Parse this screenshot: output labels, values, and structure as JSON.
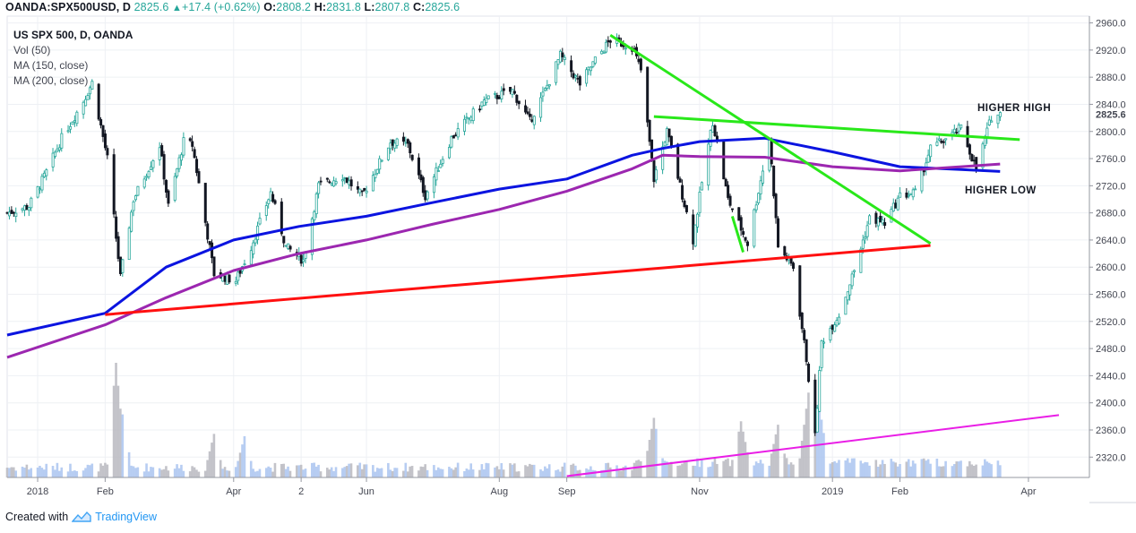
{
  "header": {
    "symbol": "OANDA:SPX500USD, D",
    "last": "2825.6",
    "change": "+17.4 (+0.62%)",
    "o_label": "O:",
    "o_value": "2808.2",
    "h_label": "H:",
    "h_value": "2831.8",
    "l_label": "L:",
    "l_value": "2807.8",
    "c_label": "C:",
    "c_value": "2825.6",
    "up_icon": "triangle-up-icon"
  },
  "legend": {
    "title": "US SPX 500, D, OANDA",
    "vol": "Vol (50)",
    "ma150": "MA (150, close)",
    "ma200": "MA (200, close)"
  },
  "annotations": {
    "higher_high": "HIGHER HIGH",
    "higher_low": "HIGHER LOW"
  },
  "footer": {
    "created_with": "Created with",
    "brand": "TradingView",
    "logo_icon": "tradingview-logo-icon"
  },
  "colors": {
    "up_candle": "#26a69a",
    "down_candle": "#131722",
    "ma150": "#0b14e0",
    "ma200": "#9c27b0",
    "support": "#ff1010",
    "trend_green": "#29e81a",
    "trend_magenta": "#e91ee6",
    "volume": "#aac4f0",
    "volume_dark": "#b9b9c0"
  },
  "chart_data": {
    "type": "candlestick",
    "title": "US SPX 500, D, OANDA",
    "ylim": [
      2290,
      2970
    ],
    "y_ticks": [
      2320,
      2360,
      2400,
      2440,
      2480,
      2520,
      2560,
      2600,
      2640,
      2680,
      2720,
      2760,
      2800,
      2840,
      2880,
      2920,
      2960
    ],
    "y_tick_labels": [
      "2320.0",
      "2360.0",
      "2400.0",
      "2440.0",
      "2480.0",
      "2520.0",
      "2560.0",
      "2600.0",
      "2640.0",
      "2680.0",
      "2720.0",
      "2760.0",
      "2800.0",
      "2840.0",
      "2880.0",
      "2920.0",
      "2960.0"
    ],
    "last_price_label": "2825.6",
    "last_price": 2825.6,
    "x_ticks": [
      {
        "label": "2018",
        "date": "2018-01-01"
      },
      {
        "label": "Feb",
        "date": "2018-02-01"
      },
      {
        "label": "Apr",
        "date": "2018-04-01"
      },
      {
        "label": "2",
        "date": "2018-05-02"
      },
      {
        "label": "Jun",
        "date": "2018-06-01"
      },
      {
        "label": "Aug",
        "date": "2018-08-01"
      },
      {
        "label": "Sep",
        "date": "2018-09-01"
      },
      {
        "label": "Nov",
        "date": "2018-11-01"
      },
      {
        "label": "2019",
        "date": "2019-01-01"
      },
      {
        "label": "Feb",
        "date": "2019-02-01"
      },
      {
        "label": "Apr",
        "date": "2019-04-01"
      }
    ],
    "close_path": [
      [
        "2017-12-18",
        2680
      ],
      [
        "2017-12-28",
        2690
      ],
      [
        "2018-01-05",
        2740
      ],
      [
        "2018-01-12",
        2790
      ],
      [
        "2018-01-22",
        2845
      ],
      [
        "2018-01-26",
        2872
      ],
      [
        "2018-02-02",
        2760
      ],
      [
        "2018-02-08",
        2585
      ],
      [
        "2018-02-14",
        2700
      ],
      [
        "2018-02-26",
        2780
      ],
      [
        "2018-03-02",
        2690
      ],
      [
        "2018-03-09",
        2785
      ],
      [
        "2018-03-13",
        2780
      ],
      [
        "2018-03-23",
        2590
      ],
      [
        "2018-04-02",
        2580
      ],
      [
        "2018-04-09",
        2630
      ],
      [
        "2018-04-18",
        2710
      ],
      [
        "2018-04-25",
        2630
      ],
      [
        "2018-05-03",
        2610
      ],
      [
        "2018-05-10",
        2720
      ],
      [
        "2018-05-21",
        2735
      ],
      [
        "2018-05-30",
        2705
      ],
      [
        "2018-06-12",
        2785
      ],
      [
        "2018-06-20",
        2780
      ],
      [
        "2018-06-28",
        2705
      ],
      [
        "2018-07-10",
        2790
      ],
      [
        "2018-07-25",
        2845
      ],
      [
        "2018-08-07",
        2860
      ],
      [
        "2018-08-15",
        2815
      ],
      [
        "2018-08-22",
        2860
      ],
      [
        "2018-08-29",
        2912
      ],
      [
        "2018-09-07",
        2870
      ],
      [
        "2018-09-14",
        2905
      ],
      [
        "2018-09-21",
        2935
      ],
      [
        "2018-10-01",
        2925
      ],
      [
        "2018-10-05",
        2890
      ],
      [
        "2018-10-11",
        2730
      ],
      [
        "2018-10-17",
        2800
      ],
      [
        "2018-10-29",
        2640
      ],
      [
        "2018-11-02",
        2725
      ],
      [
        "2018-11-07",
        2815
      ],
      [
        "2018-11-14",
        2700
      ],
      [
        "2018-11-23",
        2635
      ],
      [
        "2018-12-03",
        2790
      ],
      [
        "2018-12-07",
        2630
      ],
      [
        "2018-12-14",
        2600
      ],
      [
        "2018-12-20",
        2465
      ],
      [
        "2018-12-24",
        2350
      ],
      [
        "2018-12-27",
        2490
      ],
      [
        "2019-01-04",
        2530
      ],
      [
        "2019-01-11",
        2595
      ],
      [
        "2019-01-18",
        2672
      ],
      [
        "2019-01-25",
        2665
      ],
      [
        "2019-02-01",
        2705
      ],
      [
        "2019-02-08",
        2710
      ],
      [
        "2019-02-15",
        2775
      ],
      [
        "2019-02-25",
        2795
      ],
      [
        "2019-03-01",
        2805
      ],
      [
        "2019-03-08",
        2745
      ],
      [
        "2019-03-15",
        2822
      ],
      [
        "2019-03-19",
        2825.6
      ]
    ],
    "volume_spikes": [
      [
        "2018-02-06",
        1.0
      ],
      [
        "2018-02-09",
        0.55
      ],
      [
        "2018-03-23",
        0.38
      ],
      [
        "2018-04-06",
        0.36
      ],
      [
        "2018-10-11",
        0.48
      ],
      [
        "2018-11-20",
        0.45
      ],
      [
        "2018-12-07",
        0.42
      ],
      [
        "2018-12-21",
        0.7
      ],
      [
        "2018-12-24",
        0.62
      ],
      [
        "2018-12-26",
        0.58
      ]
    ],
    "series": [
      {
        "name": "MA (150, close)",
        "values": [
          [
            "2017-12-18",
            2500
          ],
          [
            "2018-02-01",
            2532
          ],
          [
            "2018-03-01",
            2600
          ],
          [
            "2018-04-01",
            2640
          ],
          [
            "2018-05-01",
            2660
          ],
          [
            "2018-06-01",
            2675
          ],
          [
            "2018-07-01",
            2695
          ],
          [
            "2018-08-01",
            2715
          ],
          [
            "2018-09-01",
            2730
          ],
          [
            "2018-10-01",
            2765
          ],
          [
            "2018-10-15",
            2775
          ],
          [
            "2018-11-01",
            2785
          ],
          [
            "2018-12-01",
            2790
          ],
          [
            "2019-01-01",
            2770
          ],
          [
            "2019-02-01",
            2748
          ],
          [
            "2019-03-01",
            2744
          ],
          [
            "2019-03-19",
            2741
          ]
        ]
      },
      {
        "name": "MA (200, close)",
        "values": [
          [
            "2017-12-18",
            2467
          ],
          [
            "2018-02-01",
            2515
          ],
          [
            "2018-03-01",
            2555
          ],
          [
            "2018-04-01",
            2595
          ],
          [
            "2018-05-01",
            2620
          ],
          [
            "2018-06-01",
            2640
          ],
          [
            "2018-07-01",
            2663
          ],
          [
            "2018-08-01",
            2685
          ],
          [
            "2018-09-01",
            2712
          ],
          [
            "2018-10-01",
            2745
          ],
          [
            "2018-10-15",
            2765
          ],
          [
            "2018-11-01",
            2763
          ],
          [
            "2018-12-01",
            2762
          ],
          [
            "2019-01-01",
            2748
          ],
          [
            "2019-02-01",
            2742
          ],
          [
            "2019-03-01",
            2748
          ],
          [
            "2019-03-19",
            2752
          ]
        ]
      }
    ],
    "trendlines": [
      {
        "name": "support",
        "color": "red",
        "from": [
          "2018-02-01",
          2530
        ],
        "to": [
          "2019-02-15",
          2632
        ]
      },
      {
        "name": "downtrend",
        "color": "green",
        "from": [
          "2018-09-21",
          2942
        ],
        "to": [
          "2019-02-15",
          2635
        ]
      },
      {
        "name": "resistance",
        "color": "green",
        "from": [
          "2018-10-11",
          2822
        ],
        "to": [
          "2019-03-28",
          2788
        ]
      },
      {
        "name": "flag",
        "color": "green",
        "from": [
          "2018-11-16",
          2675
        ],
        "to": [
          "2018-11-21",
          2622
        ]
      },
      {
        "name": "rising",
        "color": "magenta",
        "from": [
          "2018-09-01",
          2292
        ],
        "to": [
          "2019-04-15",
          2382
        ]
      }
    ]
  }
}
